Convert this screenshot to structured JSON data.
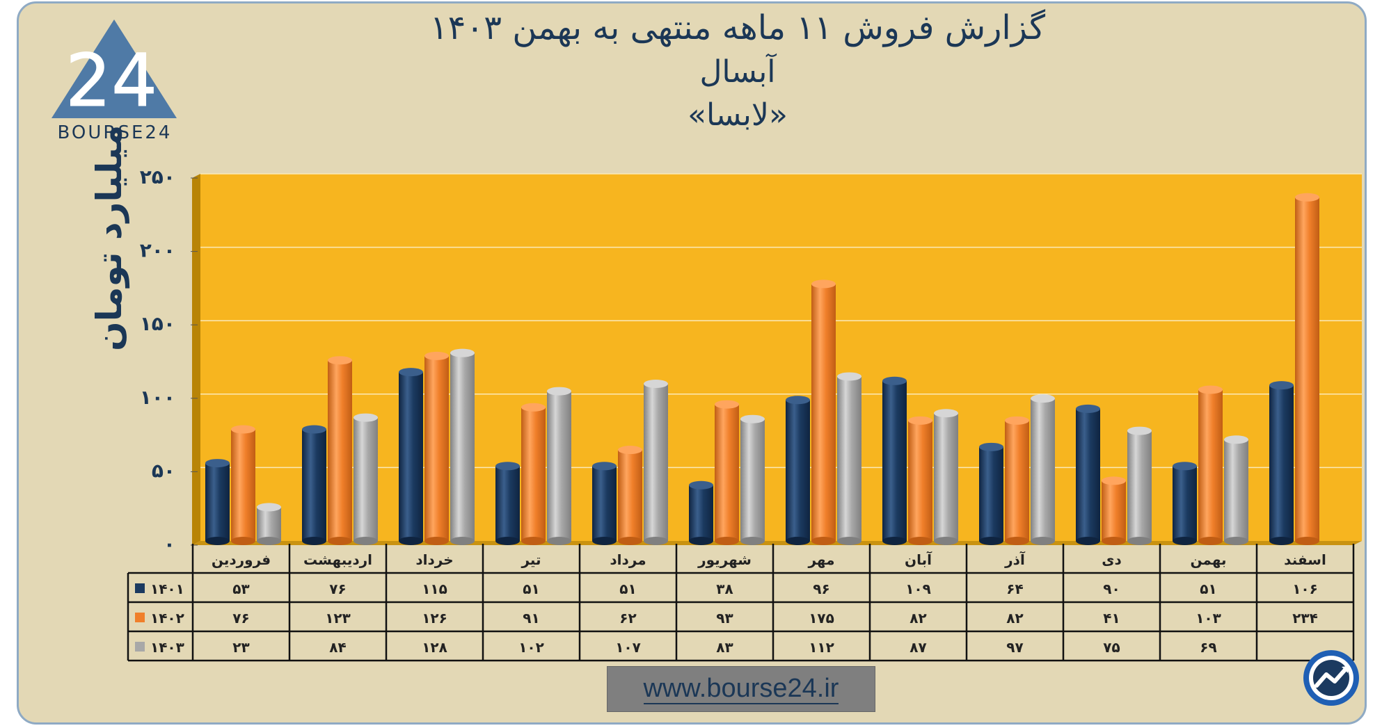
{
  "header": {
    "title_line1": "گزارش  فروش ۱۱ ماهه منتهی به بهمن ۱۴۰۳",
    "title_line2": "آبسال",
    "title_line3": "«لابسا»"
  },
  "logo": {
    "text": "BOURSE24",
    "mark_text": "24"
  },
  "footer": {
    "website": "www.bourse24.ir"
  },
  "colors": {
    "series_1401": "#1b3a60",
    "series_1402": "#f07f2a",
    "series_1403": "#a8a8a8",
    "plot_background": "#f7b51f",
    "frame_background": "#e3d8b5",
    "text": "#1b3756"
  },
  "chart_data": {
    "type": "bar",
    "ylabel": "میلیارد تومان",
    "ylim": [
      0,
      250
    ],
    "yticks": [
      "۰",
      "۵۰",
      "۱۰۰",
      "۱۵۰",
      "۲۰۰",
      "۲۵۰"
    ],
    "ytick_values": [
      0,
      50,
      100,
      150,
      200,
      250
    ],
    "grid": true,
    "legend": "table-left",
    "categories": [
      "فروردین",
      "اردیبهشت",
      "خرداد",
      "تیر",
      "مرداد",
      "شهریور",
      "مهر",
      "آبان",
      "آذر",
      "دی",
      "بهمن",
      "اسفند"
    ],
    "series": [
      {
        "name": "۱۴۰۱",
        "values": [
          53,
          76,
          115,
          51,
          51,
          38,
          96,
          109,
          64,
          90,
          51,
          106
        ],
        "labels": [
          "۵۳",
          "۷۶",
          "۱۱۵",
          "۵۱",
          "۵۱",
          "۳۸",
          "۹۶",
          "۱۰۹",
          "۶۴",
          "۹۰",
          "۵۱",
          "۱۰۶"
        ]
      },
      {
        "name": "۱۴۰۲",
        "values": [
          76,
          123,
          126,
          91,
          62,
          93,
          175,
          82,
          82,
          41,
          103,
          234
        ],
        "labels": [
          "۷۶",
          "۱۲۳",
          "۱۲۶",
          "۹۱",
          "۶۲",
          "۹۳",
          "۱۷۵",
          "۸۲",
          "۸۲",
          "۴۱",
          "۱۰۳",
          "۲۳۴"
        ]
      },
      {
        "name": "۱۴۰۳",
        "values": [
          23,
          84,
          128,
          102,
          107,
          83,
          112,
          87,
          97,
          75,
          69,
          null
        ],
        "labels": [
          "۲۳",
          "۸۴",
          "۱۲۸",
          "۱۰۲",
          "۱۰۷",
          "۸۳",
          "۱۱۲",
          "۸۷",
          "۹۷",
          "۷۵",
          "۶۹",
          ""
        ]
      }
    ]
  }
}
